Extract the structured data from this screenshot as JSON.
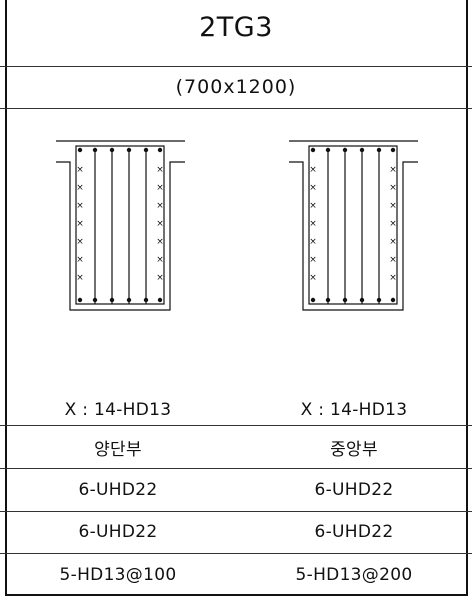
{
  "header": {
    "title": "2TG3",
    "dimensions": "(700x1200)"
  },
  "columns": [
    {
      "tie_note": "X : 14-HD13",
      "location": "양단부",
      "top_bar": "6-UHD22",
      "bottom_bar": "6-UHD22",
      "stirrup": "5-HD13@100"
    },
    {
      "tie_note": "X : 14-HD13",
      "location": "중앙부",
      "top_bar": "6-UHD22",
      "bottom_bar": "6-UHD22",
      "stirrup": "5-HD13@200"
    }
  ]
}
